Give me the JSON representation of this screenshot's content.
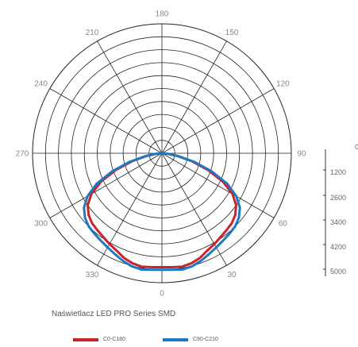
{
  "caption": "Naświetlacz LED PRO Series SMD",
  "chart_data": {
    "type": "polar",
    "angle_labels": [
      "0",
      "30",
      "60",
      "90",
      "120",
      "150",
      "180",
      "210",
      "240",
      "270",
      "300",
      "330"
    ],
    "radial_scale": {
      "labels": [
        "0",
        "1200",
        "2600",
        "3400",
        "4200",
        "5000"
      ],
      "max": 5000,
      "gridline_count": 10
    },
    "series": [
      {
        "name": "C0-C180",
        "color": "#cc2229",
        "angles": [
          0,
          5,
          10,
          15,
          20,
          25,
          30,
          35,
          40,
          45,
          50,
          55,
          60,
          65,
          70,
          75,
          80,
          85,
          90
        ],
        "values": [
          4400,
          4420,
          4450,
          4400,
          4300,
          4150,
          4050,
          3950,
          3880,
          3820,
          3700,
          3500,
          3150,
          2600,
          1900,
          1200,
          600,
          200,
          0
        ]
      },
      {
        "name": "C90-C210",
        "color": "#1f78c2",
        "angles": [
          0,
          5,
          10,
          15,
          20,
          25,
          30,
          35,
          40,
          45,
          50,
          55,
          60,
          65,
          70,
          75,
          80,
          85,
          90
        ],
        "values": [
          4500,
          4520,
          4560,
          4520,
          4420,
          4300,
          4200,
          4120,
          4060,
          4000,
          3880,
          3680,
          3320,
          2780,
          2050,
          1300,
          650,
          220,
          0
        ]
      }
    ]
  }
}
